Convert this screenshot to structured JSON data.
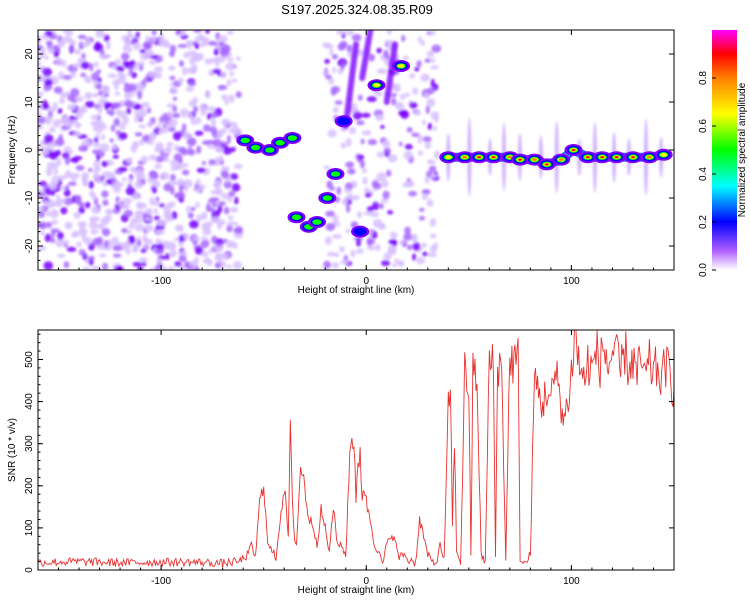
{
  "title": "S197.2025.324.08.35.R09",
  "chart_data": [
    {
      "type": "heatmap",
      "name": "spectrogram",
      "xlabel": "Height of straight line (km)",
      "ylabel": "Frequency (Hz)",
      "xlim": [
        -160,
        150
      ],
      "ylim": [
        -25,
        25
      ],
      "xticks": [
        -100,
        0,
        100
      ],
      "yticks": [
        -20,
        -10,
        0,
        10,
        20
      ],
      "colorbar": {
        "label": "Normalized spectral amplitude",
        "range": [
          0,
          1
        ],
        "ticks": [
          0.0,
          0.2,
          0.4,
          0.6,
          0.8
        ],
        "tick_labels": [
          "0.0",
          "0.2",
          "0.4",
          "0.6",
          "0.8"
        ],
        "colormap": [
          "#ffffff",
          "#8000ff",
          "#0000ff",
          "#00ffff",
          "#00ff00",
          "#ffff00",
          "#ff8000",
          "#ff0000",
          "#ff00ff"
        ]
      },
      "regions": [
        {
          "label": "noise",
          "x": [
            -160,
            -62
          ],
          "density": "high",
          "amplitude": 0.2
        },
        {
          "label": "noise",
          "x": [
            -20,
            35
          ],
          "density": "medium",
          "amplitude": 0.15
        }
      ],
      "blobs": [
        {
          "x": -59,
          "y": 2,
          "amp": 0.45
        },
        {
          "x": -54,
          "y": 0.5,
          "amp": 0.5
        },
        {
          "x": -47,
          "y": 0,
          "amp": 0.5
        },
        {
          "x": -42,
          "y": 1.5,
          "amp": 0.45
        },
        {
          "x": -36,
          "y": 2.5,
          "amp": 0.4
        },
        {
          "x": -34,
          "y": -14,
          "amp": 0.45
        },
        {
          "x": -28,
          "y": -16,
          "amp": 0.5
        },
        {
          "x": -24,
          "y": -15,
          "amp": 0.45
        },
        {
          "x": -19,
          "y": -10,
          "amp": 0.4
        },
        {
          "x": -15,
          "y": -5,
          "amp": 0.4
        },
        {
          "x": -11,
          "y": 6,
          "amp": 0.35
        },
        {
          "x": -3,
          "y": -17,
          "amp": 0.35
        },
        {
          "x": 5,
          "y": 13.5,
          "amp": 0.65
        },
        {
          "x": 17,
          "y": 17.5,
          "amp": 0.55
        },
        {
          "x": 40,
          "y": -1.5,
          "amp": 0.55
        },
        {
          "x": 48,
          "y": -1.5,
          "amp": 0.7
        },
        {
          "x": 55,
          "y": -1.5,
          "amp": 0.85
        },
        {
          "x": 62,
          "y": -1.5,
          "amp": 0.9
        },
        {
          "x": 70,
          "y": -1.5,
          "amp": 0.75
        },
        {
          "x": 75,
          "y": -2,
          "amp": 0.9
        },
        {
          "x": 82,
          "y": -2,
          "amp": 0.8
        },
        {
          "x": 88,
          "y": -3,
          "amp": 0.85
        },
        {
          "x": 95,
          "y": -2,
          "amp": 0.7
        },
        {
          "x": 101,
          "y": 0,
          "amp": 0.85
        },
        {
          "x": 108,
          "y": -1.5,
          "amp": 0.85
        },
        {
          "x": 115,
          "y": -1.5,
          "amp": 0.9
        },
        {
          "x": 122,
          "y": -1.5,
          "amp": 0.85
        },
        {
          "x": 130,
          "y": -1.5,
          "amp": 0.85
        },
        {
          "x": 138,
          "y": -1.5,
          "amp": 0.75
        },
        {
          "x": 145,
          "y": -1,
          "amp": 0.6
        }
      ],
      "streaks": [
        {
          "x1": -2,
          "y1": 15,
          "x2": 2,
          "y2": 25,
          "amp": 0.3
        },
        {
          "x1": -10,
          "y1": 5,
          "x2": -5,
          "y2": 22,
          "amp": 0.3
        },
        {
          "x1": 10,
          "y1": 10,
          "x2": 14,
          "y2": 22,
          "amp": 0.25
        }
      ]
    },
    {
      "type": "line",
      "name": "snr",
      "xlabel": "Height of straight line (km)",
      "ylabel": "SNR (10 * v/v)",
      "xlim": [
        -160,
        150
      ],
      "ylim": [
        0,
        570
      ],
      "xticks": [
        -100,
        0,
        100
      ],
      "yticks": [
        0,
        100,
        200,
        300,
        400,
        500
      ],
      "color": "#e8312f",
      "series": [
        {
          "name": "SNR",
          "x": [
            -160,
            -140,
            -120,
            -100,
            -80,
            -70,
            -62,
            -58,
            -56,
            -54,
            -52,
            -50,
            -49,
            -48,
            -46,
            -44,
            -42,
            -40,
            -38,
            -37,
            -36,
            -35,
            -34,
            -32,
            -30,
            -28,
            -26,
            -24,
            -22,
            -20,
            -18,
            -16,
            -14,
            -12,
            -10,
            -8,
            -6,
            -5,
            -4,
            -3,
            -2,
            -1,
            0,
            2,
            4,
            6,
            8,
            10,
            12,
            14,
            16,
            18,
            19,
            20,
            22,
            24,
            26,
            28,
            30,
            32,
            34,
            36,
            38,
            40,
            41,
            42,
            43,
            44,
            46,
            48,
            50,
            51,
            52,
            54,
            56,
            58,
            60,
            62,
            63,
            64,
            66,
            68,
            70,
            72,
            74,
            75,
            76,
            78,
            80,
            82,
            84,
            86,
            88,
            90,
            92,
            94,
            96,
            98,
            100,
            102,
            104,
            106,
            107,
            108,
            110,
            112,
            114,
            116,
            118,
            120,
            122,
            124,
            126,
            128,
            130,
            132,
            134,
            136,
            138,
            140,
            142,
            144,
            146,
            148,
            150
          ],
          "y": [
            18,
            20,
            17,
            19,
            18,
            16,
            20,
            35,
            60,
            30,
            160,
            195,
            150,
            60,
            45,
            30,
            120,
            200,
            80,
            330,
            150,
            80,
            60,
            250,
            200,
            120,
            110,
            60,
            140,
            100,
            40,
            150,
            60,
            60,
            30,
            290,
            320,
            150,
            250,
            280,
            180,
            200,
            160,
            120,
            60,
            40,
            15,
            60,
            85,
            70,
            30,
            35,
            40,
            20,
            25,
            15,
            120,
            80,
            35,
            20,
            15,
            60,
            25,
            380,
            450,
            100,
            320,
            45,
            20,
            470,
            440,
            25,
            480,
            450,
            35,
            20,
            500,
            480,
            25,
            500,
            470,
            30,
            510,
            490,
            500,
            30,
            20,
            15,
            40,
            460,
            420,
            390,
            430,
            400,
            460,
            440,
            350,
            390,
            470,
            570,
            470,
            480,
            420,
            500,
            470,
            520,
            490,
            530,
            480,
            520,
            500,
            470,
            520,
            480,
            500,
            460,
            500,
            450,
            490,
            470,
            480,
            450,
            490,
            460,
            430
          ]
        }
      ]
    }
  ]
}
